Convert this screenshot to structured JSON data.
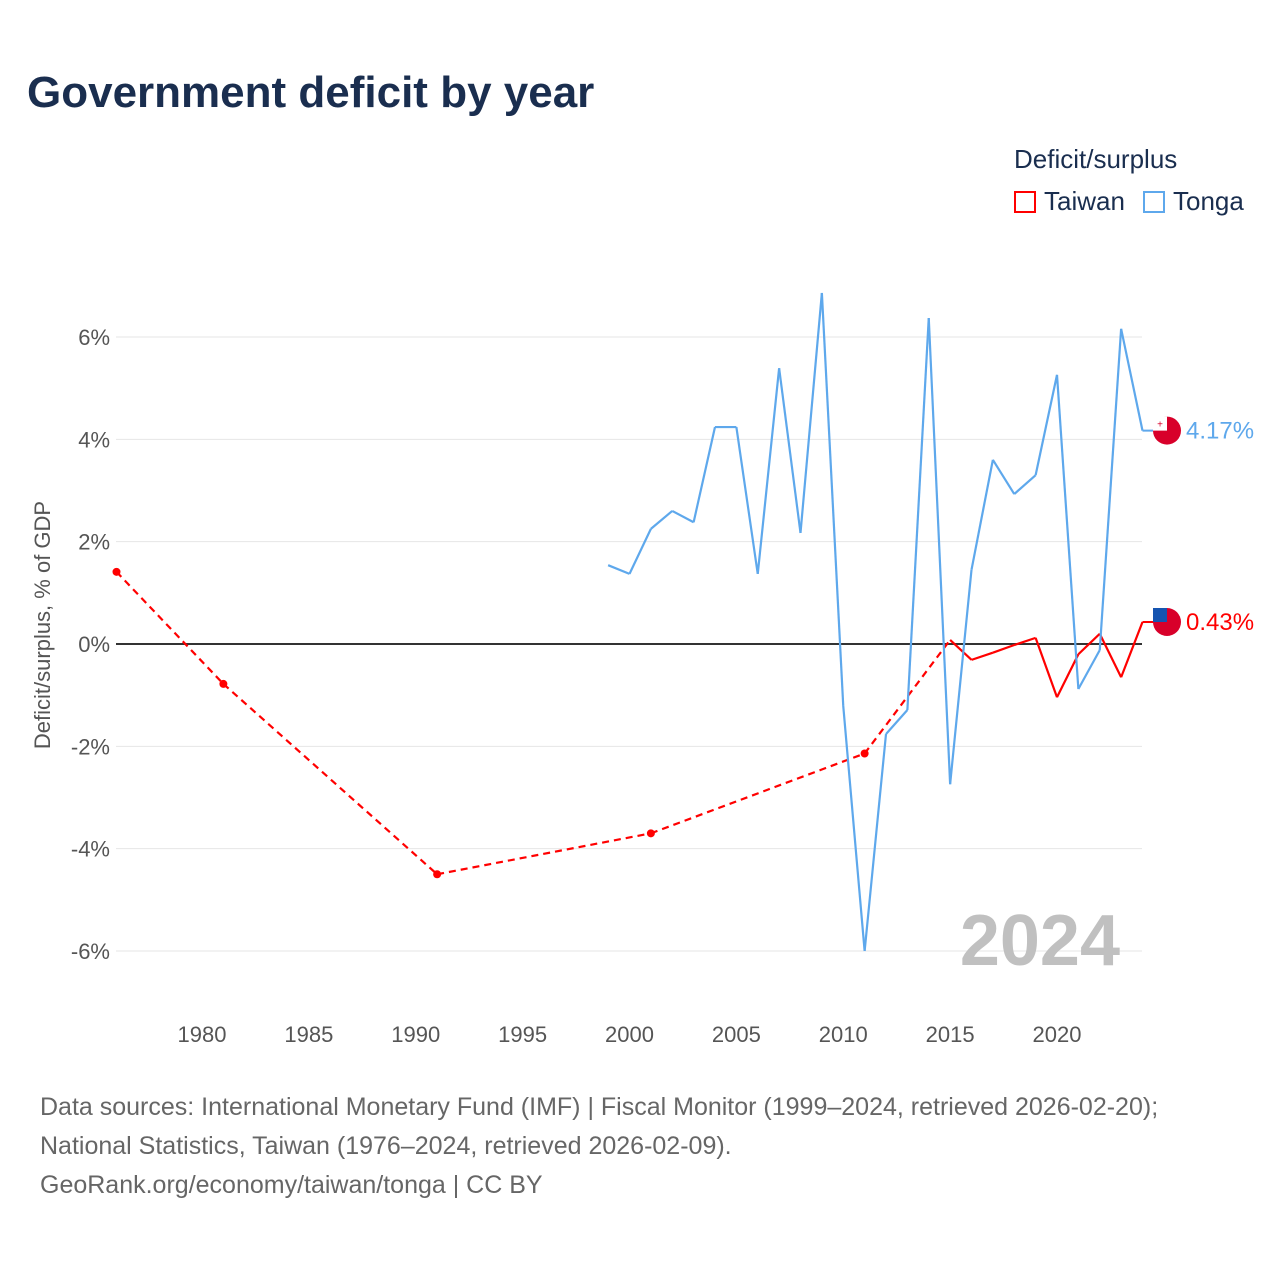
{
  "chart_data": {
    "type": "line",
    "title": "Government deficit by year",
    "ylabel": "Deficit/surplus, % of GDP",
    "xlabel": "",
    "ylim": [
      -7,
      7
    ],
    "xlim": [
      1975.6,
      2024
    ],
    "yticks": [
      6,
      4,
      2,
      0,
      -2,
      -4,
      -6
    ],
    "ytick_labels": [
      "6%",
      "4%",
      "2%",
      "0%",
      "-2%",
      "-4%",
      "-6%"
    ],
    "xticks": [
      1980,
      1985,
      1990,
      1995,
      2000,
      2005,
      2010,
      2015,
      2020
    ],
    "xtick_labels": [
      "1980",
      "1985",
      "1990",
      "1995",
      "2000",
      "2005",
      "2010",
      "2015",
      "2020"
    ],
    "legend_title": "Deficit/surplus",
    "legend_position": "top-right",
    "year_watermark": "2024",
    "series": [
      {
        "name": "Taiwan",
        "color": "#ff0000",
        "end_label": "0.43%",
        "flag": "taiwan-flag",
        "x": [
          1976,
          1981,
          1991,
          2001,
          2011,
          2015,
          2016,
          2017,
          2018,
          2019,
          2020,
          2021,
          2022,
          2023,
          2024
        ],
        "y": [
          1.41,
          -0.78,
          -4.5,
          -3.7,
          -2.14,
          0.08,
          -0.31,
          -0.17,
          -0.02,
          0.12,
          -1.04,
          -0.2,
          0.2,
          -0.65,
          0.43
        ]
      },
      {
        "name": "Tonga",
        "color": "#5ea8ec",
        "end_label": "4.17%",
        "flag": "tonga-flag",
        "x": [
          1999,
          2000,
          2001,
          2002,
          2003,
          2004,
          2005,
          2006,
          2007,
          2008,
          2009,
          2010,
          2011,
          2012,
          2013,
          2014,
          2015,
          2016,
          2017,
          2018,
          2019,
          2020,
          2021,
          2022,
          2023,
          2024
        ],
        "y": [
          1.54,
          1.37,
          2.25,
          2.6,
          2.38,
          4.24,
          4.24,
          1.37,
          5.39,
          2.17,
          6.86,
          -1.21,
          -6.0,
          -1.76,
          -1.29,
          6.37,
          -2.74,
          1.45,
          3.6,
          2.93,
          3.3,
          5.26,
          -0.88,
          -0.12,
          6.16,
          4.17
        ]
      }
    ]
  },
  "source": {
    "line1": "Data sources: International Monetary Fund (IMF) | Fiscal Monitor (1999–2024, retrieved 2026-02-20);",
    "line2": "National Statistics, Taiwan (1976–2024, retrieved 2026-02-09).",
    "line3": "GeoRank.org/economy/taiwan/tonga | CC BY"
  }
}
